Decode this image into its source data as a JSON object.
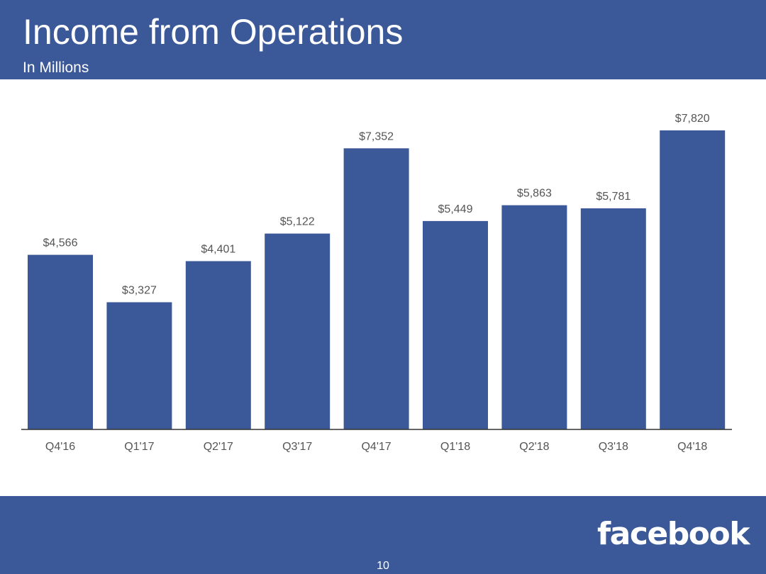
{
  "slide": {
    "title": "Income from Operations",
    "subtitle": "In Millions",
    "logo_text": "facebook",
    "page_number": "10"
  },
  "colors": {
    "brand": "#3b5998",
    "bar": "#3b5998",
    "label": "#555555",
    "axis": "#333333"
  },
  "chart_data": {
    "type": "bar",
    "title": "Income from Operations",
    "subtitle": "In Millions",
    "xlabel": "",
    "ylabel": "",
    "ylim": [
      0,
      8500
    ],
    "grid": false,
    "categories": [
      "Q4'16",
      "Q1'17",
      "Q2'17",
      "Q3'17",
      "Q4'17",
      "Q1'18",
      "Q2'18",
      "Q3'18",
      "Q4'18"
    ],
    "values": [
      4566,
      3327,
      4401,
      5122,
      7352,
      5449,
      5863,
      5781,
      7820
    ],
    "value_labels": [
      "$4,566",
      "$3,327",
      "$4,401",
      "$5,122",
      "$7,352",
      "$5,449",
      "$5,863",
      "$5,781",
      "$7,820"
    ]
  }
}
